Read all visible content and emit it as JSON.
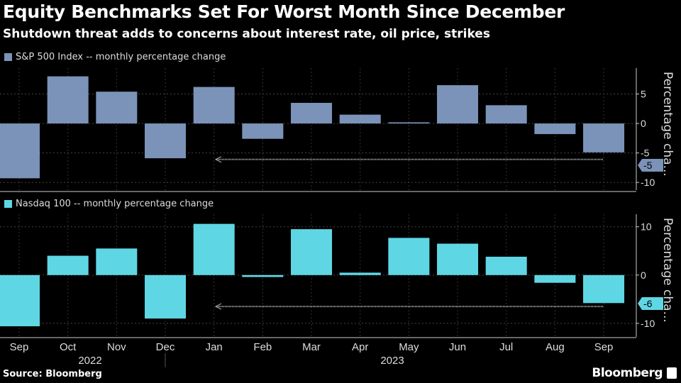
{
  "title": "Equity Benchmarks Set For Worst Month Since December",
  "subtitle": "Shutdown threat adds to concerns about interest rate, oil price, strikes",
  "source": "Source: Bloomberg",
  "brand": "Bloomberg",
  "chart_data": [
    {
      "type": "bar",
      "legend": "S&P 500 Index -- monthly percentage change",
      "color": "#7b93b8",
      "ylabel": "Percentage cha...",
      "ylim": [
        -11.3,
        9.4
      ],
      "yticks": [
        5,
        0,
        -5,
        -10
      ],
      "yticklabels": [
        "5",
        "0",
        "-5",
        "-10"
      ],
      "last_value_label": "-5",
      "categories": [
        "Sep",
        "Oct",
        "Nov",
        "Dec",
        "Jan",
        "Feb",
        "Mar",
        "Apr",
        "May",
        "Jun",
        "Jul",
        "Aug",
        "Sep"
      ],
      "values": [
        -9.3,
        8.0,
        5.4,
        -5.9,
        6.2,
        -2.6,
        3.5,
        1.5,
        0.2,
        6.5,
        3.1,
        -1.8,
        -4.9
      ],
      "reference_line": -6.1
    },
    {
      "type": "bar",
      "legend": "Nasdaq 100 -- monthly percentage change",
      "color": "#5fd6e4",
      "ylabel": "Percentage cha...",
      "ylim": [
        -12.8,
        12.6
      ],
      "yticks": [
        10,
        0,
        -10
      ],
      "yticklabels": [
        "10",
        "0",
        "-10"
      ],
      "last_value_label": "-6",
      "categories": [
        "Sep",
        "Oct",
        "Nov",
        "Dec",
        "Jan",
        "Feb",
        "Mar",
        "Apr",
        "May",
        "Jun",
        "Jul",
        "Aug",
        "Sep"
      ],
      "values": [
        -10.6,
        4.0,
        5.5,
        -9.0,
        10.6,
        -0.4,
        9.5,
        0.5,
        7.7,
        6.5,
        3.8,
        -1.6,
        -5.8
      ],
      "reference_line": -6.5
    }
  ],
  "xaxis": {
    "labels": [
      "Sep",
      "Oct",
      "Nov",
      "Dec",
      "Jan",
      "Feb",
      "Mar",
      "Apr",
      "May",
      "Jun",
      "Jul",
      "Aug",
      "Sep"
    ],
    "years": [
      "2022",
      "2023"
    ]
  }
}
